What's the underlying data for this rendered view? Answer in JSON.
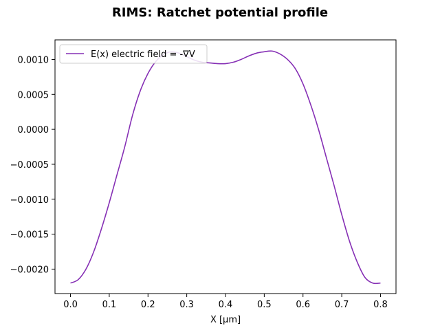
{
  "chart_data": {
    "type": "line",
    "title": "RIMS: Ratchet potential profile",
    "xlabel": "X [μm]",
    "ylabel": "",
    "xlim": [
      -0.04,
      0.84
    ],
    "ylim": [
      -0.00235,
      0.00128
    ],
    "xticks": [
      0.0,
      0.1,
      0.2,
      0.3,
      0.4,
      0.5,
      0.6,
      0.7,
      0.8
    ],
    "xtick_labels": [
      "0.0",
      "0.1",
      "0.2",
      "0.3",
      "0.4",
      "0.5",
      "0.6",
      "0.7",
      "0.8"
    ],
    "yticks": [
      -0.002,
      -0.0015,
      -0.001,
      -0.0005,
      0.0,
      0.0005,
      0.001
    ],
    "ytick_labels": [
      "−0.0020",
      "−0.0015",
      "−0.0010",
      "−0.0005",
      "0.0000",
      "0.0005",
      "0.0010"
    ],
    "grid": false,
    "legend": {
      "position": "top-left"
    },
    "series": [
      {
        "name": "E(x) electric field = -∇V",
        "color": "#8630b5",
        "x": [
          0.0,
          0.02,
          0.04,
          0.06,
          0.08,
          0.1,
          0.12,
          0.14,
          0.16,
          0.18,
          0.2,
          0.22,
          0.24,
          0.26,
          0.28,
          0.3,
          0.32,
          0.34,
          0.36,
          0.38,
          0.4,
          0.42,
          0.44,
          0.46,
          0.48,
          0.5,
          0.52,
          0.54,
          0.56,
          0.58,
          0.6,
          0.62,
          0.64,
          0.66,
          0.68,
          0.7,
          0.72,
          0.74,
          0.76,
          0.78,
          0.8
        ],
        "y": [
          -0.0022,
          -0.00215,
          -0.002,
          -0.00175,
          -0.00142,
          -0.00105,
          -0.00065,
          -0.00025,
          0.0002,
          0.00055,
          0.0008,
          0.00097,
          0.00107,
          0.00111,
          0.00109,
          0.00104,
          0.00099,
          0.00096,
          0.00095,
          0.00094,
          0.00094,
          0.00096,
          0.001,
          0.00105,
          0.00109,
          0.00111,
          0.00112,
          0.00108,
          0.001,
          0.00087,
          0.00065,
          0.00035,
          0.0,
          -0.0004,
          -0.0008,
          -0.00122,
          -0.0016,
          -0.0019,
          -0.00212,
          -0.0022,
          -0.0022
        ]
      }
    ]
  }
}
